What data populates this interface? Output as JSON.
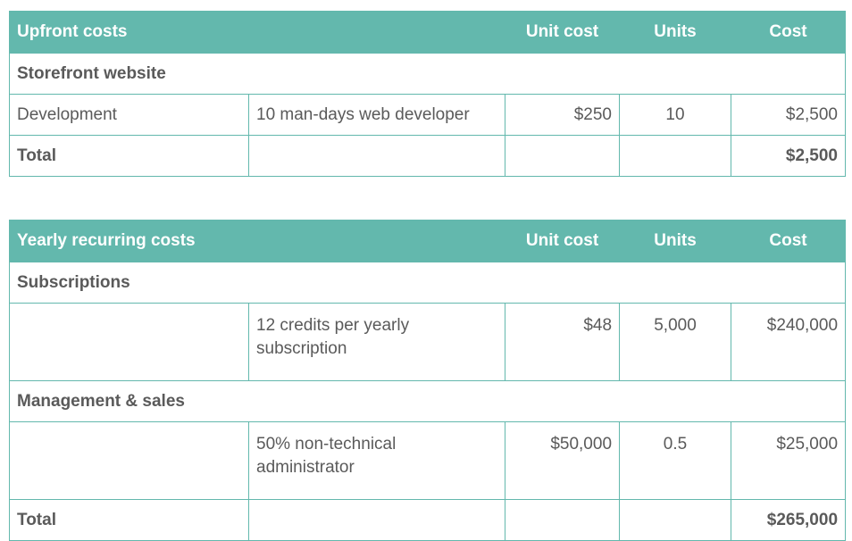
{
  "upfront": {
    "header": {
      "title": "Upfront costs",
      "unit_cost": "Unit cost",
      "units": "Units",
      "cost": "Cost"
    },
    "section": "Storefront website",
    "rows": [
      {
        "item": "Development",
        "description": "10 man-days web developer",
        "unit_cost": "$250",
        "units": "10",
        "cost": "$2,500"
      }
    ],
    "total": {
      "label": "Total",
      "cost": "$2,500"
    }
  },
  "yearly": {
    "header": {
      "title": "Yearly recurring costs",
      "unit_cost": "Unit cost",
      "units": "Units",
      "cost": "Cost"
    },
    "sections": [
      {
        "name": "Subscriptions",
        "row": {
          "item": "",
          "description": "12 credits per yearly subscription",
          "unit_cost": "$48",
          "units": "5,000",
          "cost": "$240,000"
        }
      },
      {
        "name": "Management & sales",
        "row": {
          "item": "",
          "description": "50% non-technical administrator",
          "unit_cost": "$50,000",
          "units": "0.5",
          "cost": "$25,000"
        }
      }
    ],
    "total": {
      "label": "Total",
      "cost": "$265,000"
    }
  },
  "theme": {
    "accent": "#63b8ad",
    "text": "#5a5a5a"
  }
}
